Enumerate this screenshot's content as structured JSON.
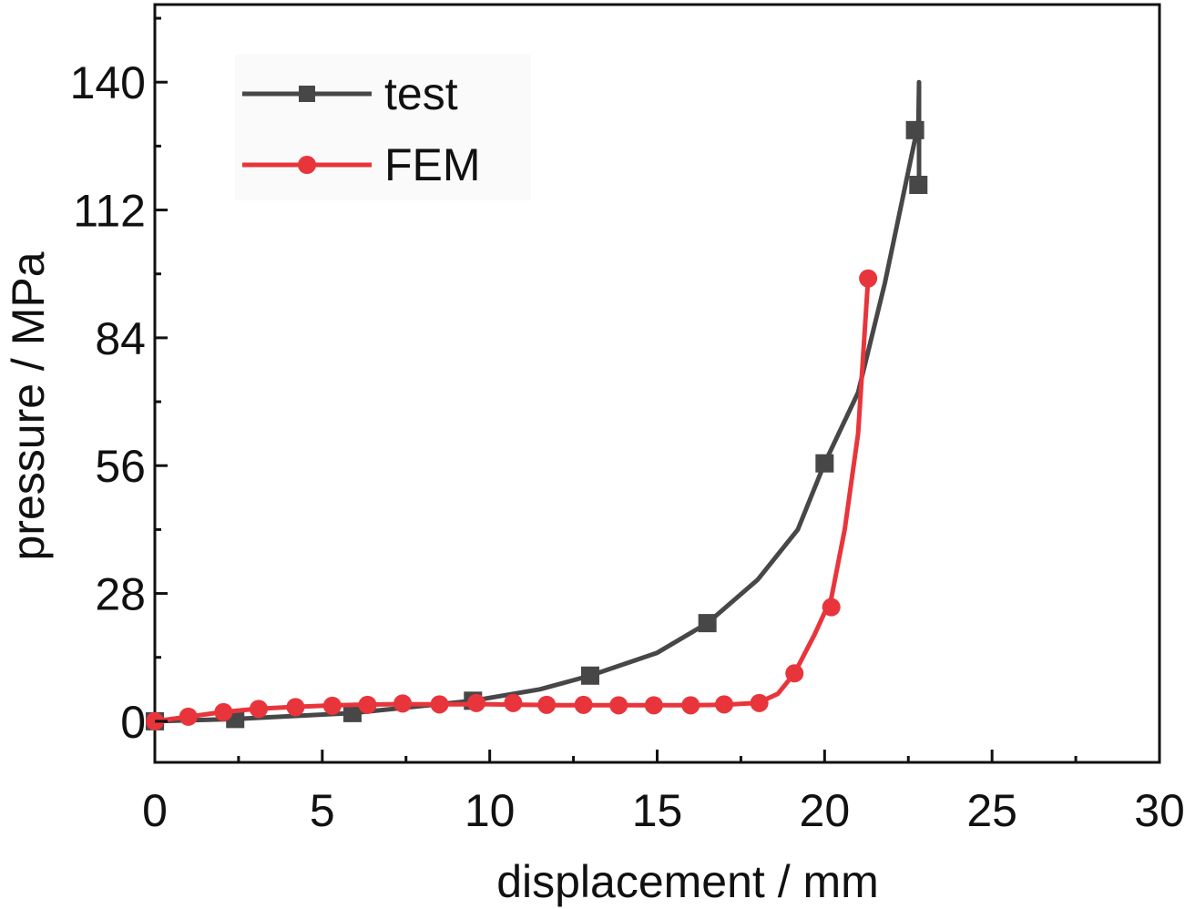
{
  "chart_data": {
    "type": "line",
    "title": "",
    "xlabel": "displacement / mm",
    "ylabel": "pressure / MPa",
    "xlim": [
      0,
      30
    ],
    "ylim": [
      -9,
      157
    ],
    "xticks": [
      0,
      5,
      10,
      15,
      20,
      25,
      30
    ],
    "yticks": [
      0,
      28,
      56,
      84,
      112,
      140
    ],
    "legend_position": "top-left",
    "series": [
      {
        "name": "test",
        "color": "#474747",
        "marker": "square",
        "curve": [
          [
            0,
            0
          ],
          [
            2.4,
            0.5
          ],
          [
            5.9,
            1.8
          ],
          [
            9.5,
            4.5
          ],
          [
            11.5,
            7.0
          ],
          [
            13.0,
            10.0
          ],
          [
            15.0,
            15.0
          ],
          [
            16.5,
            21.5
          ],
          [
            18.0,
            31.0
          ],
          [
            19.2,
            42.0
          ],
          [
            20.0,
            56.5
          ],
          [
            21.0,
            72.0
          ],
          [
            21.8,
            96.0
          ],
          [
            22.2,
            110.0
          ],
          [
            22.6,
            124.0
          ],
          [
            22.8,
            131.0
          ],
          [
            22.82,
            140.0
          ],
          [
            22.82,
            117.0
          ]
        ],
        "markers": [
          [
            0,
            0
          ],
          [
            2.4,
            0.5
          ],
          [
            5.9,
            1.8
          ],
          [
            9.5,
            4.5
          ],
          [
            13.0,
            10.0
          ],
          [
            16.5,
            21.5
          ],
          [
            20.0,
            56.5
          ],
          [
            22.7,
            129.5
          ],
          [
            22.8,
            117.5
          ]
        ]
      },
      {
        "name": "FEM",
        "color": "#e8353b",
        "marker": "circle",
        "curve": [
          [
            0,
            0
          ],
          [
            1,
            1
          ],
          [
            2,
            2
          ],
          [
            3,
            2.7
          ],
          [
            4,
            3.1
          ],
          [
            5,
            3.4
          ],
          [
            6,
            3.6
          ],
          [
            7,
            3.7
          ],
          [
            8,
            3.7
          ],
          [
            9,
            3.7
          ],
          [
            10,
            3.7
          ],
          [
            11,
            3.6
          ],
          [
            12,
            3.5
          ],
          [
            13,
            3.5
          ],
          [
            14,
            3.5
          ],
          [
            15,
            3.5
          ],
          [
            16,
            3.5
          ],
          [
            17,
            3.6
          ],
          [
            18,
            4.0
          ],
          [
            18.6,
            6.0
          ],
          [
            19.1,
            10.5
          ],
          [
            19.7,
            19.0
          ],
          [
            20.2,
            27.0
          ],
          [
            20.6,
            42.0
          ],
          [
            21.0,
            63.0
          ],
          [
            21.3,
            97.0
          ]
        ],
        "markers": [
          [
            0,
            0
          ],
          [
            1.0,
            1.0
          ],
          [
            2.05,
            2.0
          ],
          [
            3.1,
            2.7
          ],
          [
            4.2,
            3.1
          ],
          [
            5.3,
            3.4
          ],
          [
            6.35,
            3.6
          ],
          [
            7.4,
            3.9
          ],
          [
            8.5,
            3.7
          ],
          [
            9.6,
            4.0
          ],
          [
            10.7,
            4.0
          ],
          [
            11.7,
            3.6
          ],
          [
            12.8,
            3.6
          ],
          [
            13.85,
            3.5
          ],
          [
            14.9,
            3.5
          ],
          [
            16.0,
            3.5
          ],
          [
            17.0,
            3.7
          ],
          [
            18.05,
            4.0
          ],
          [
            19.1,
            10.5
          ],
          [
            20.2,
            25.0
          ],
          [
            21.3,
            97.0
          ]
        ]
      }
    ]
  }
}
